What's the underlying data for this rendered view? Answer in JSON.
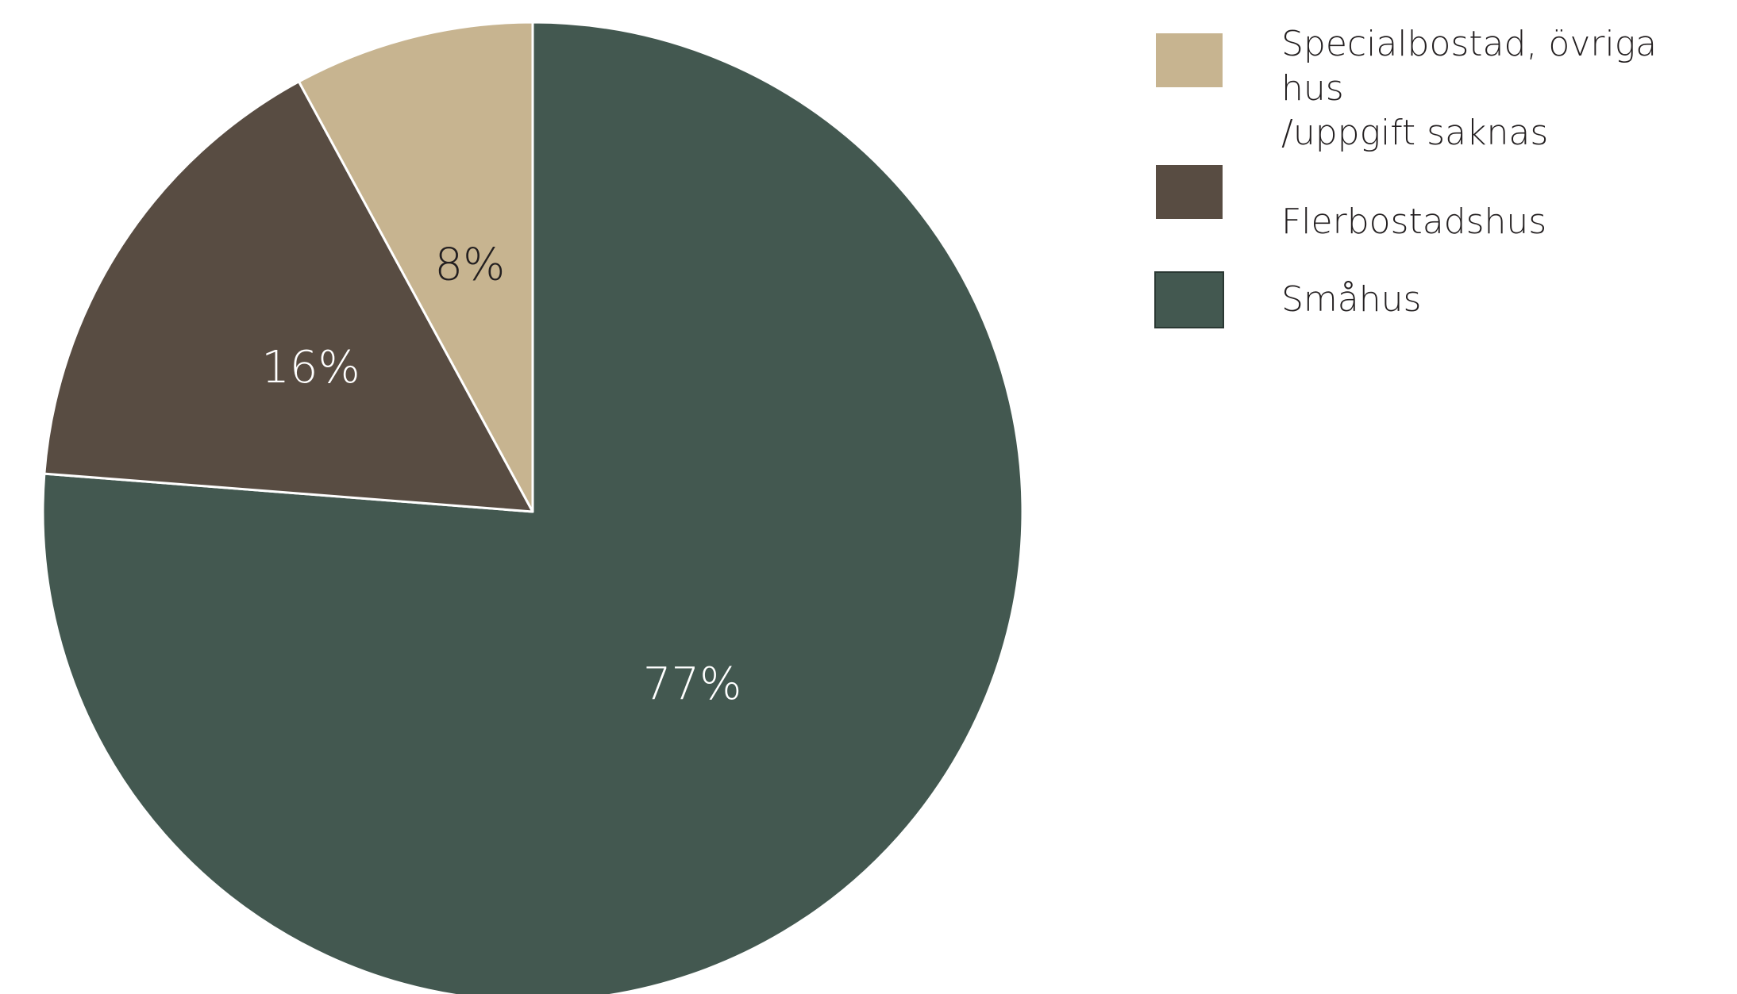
{
  "chart_data": {
    "type": "pie",
    "start_angle": "top",
    "direction": "counterclockwise",
    "slices": [
      {
        "label": "Småhus",
        "value": 77,
        "display": "77%",
        "color": "#435850",
        "label_color": "#ffffff"
      },
      {
        "label": "Flerbostadshus",
        "value": 16,
        "display": "16%",
        "color": "#584c42",
        "label_color": "#ffffff"
      },
      {
        "label": "Specialbostad, övriga hus\n/uppgift saknas",
        "value": 8,
        "display": "8%",
        "color": "#c7b490",
        "label_color": "#231f20"
      }
    ],
    "legend": {
      "position": "right",
      "order": [
        "Specialbostad, övriga hus\n/uppgift saknas",
        "Flerbostadshus",
        "Småhus"
      ]
    }
  }
}
